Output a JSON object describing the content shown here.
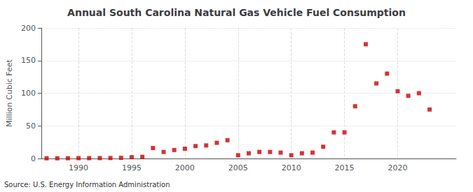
{
  "chart_data": {
    "type": "scatter",
    "title": "Annual South Carolina Natural Gas Vehicle Fuel Consumption",
    "ylabel": "Million Cubic Feet",
    "annotation": "Source: U.S. Energy Information Administration",
    "x": [
      1987,
      1988,
      1989,
      1990,
      1991,
      1992,
      1993,
      1994,
      1995,
      1996,
      1997,
      1998,
      1999,
      2000,
      2001,
      2002,
      2003,
      2004,
      2005,
      2006,
      2007,
      2008,
      2009,
      2010,
      2011,
      2012,
      2013,
      2014,
      2015,
      2016,
      2017,
      2018,
      2019,
      2020,
      2021,
      2022,
      2023
    ],
    "values": [
      0.3,
      0.3,
      0.4,
      0.5,
      0.5,
      0.6,
      0.7,
      1.0,
      2.0,
      2.5,
      16.0,
      10.0,
      13.0,
      15.0,
      19.0,
      20.0,
      24.0,
      28.0,
      5.0,
      8.0,
      10.0,
      10.0,
      9.0,
      5.0,
      8.0,
      9.0,
      18.0,
      40.0,
      40.0,
      80.0,
      175.0,
      115.0,
      130.0,
      103.0,
      96.0,
      100.0,
      75.0
    ],
    "color": "#cc0000",
    "marker": "square",
    "xlim": [
      1986.5,
      2025.5
    ],
    "xticks": [
      1990,
      1995,
      2000,
      2005,
      2010,
      2015,
      2020
    ],
    "ylim": [
      0,
      200
    ],
    "yticks": [
      0,
      50,
      100,
      150,
      200
    ],
    "grid": true
  }
}
